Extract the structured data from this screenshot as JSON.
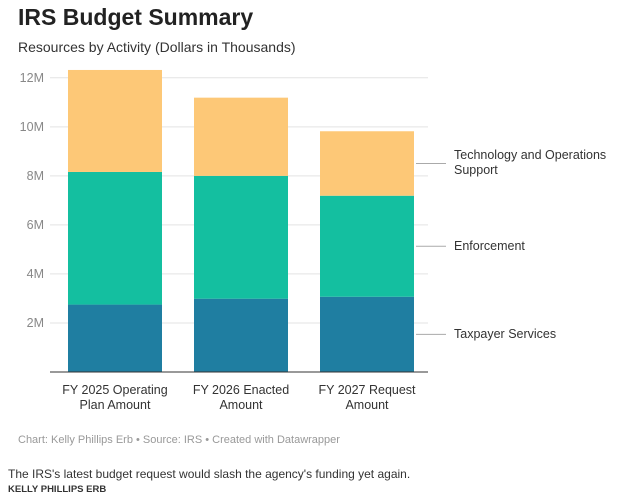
{
  "chart_data": {
    "type": "stacked_bar",
    "title": "IRS Budget Summary",
    "subtitle": "Resources by Activity (Dollars in Thousands)",
    "categories": [
      "FY 2025 Operating Plan Amount",
      "FY 2026 Enacted Amount",
      "FY 2027 Request Amount"
    ],
    "series": [
      {
        "name": "Taxpayer Services",
        "color": "#1f7ea1",
        "values": [
          2750000,
          2990000,
          3070000
        ]
      },
      {
        "name": "Enforcement",
        "color": "#14bfa0",
        "values": [
          5410000,
          5010000,
          4120000
        ]
      },
      {
        "name": "Technology and Operations Support",
        "color": "#fdc877",
        "values": [
          4160000,
          3190000,
          2630000
        ]
      }
    ],
    "ylim": [
      0,
      12400000
    ],
    "yticks": [
      {
        "value": 2000000,
        "label": "2M"
      },
      {
        "value": 4000000,
        "label": "4M"
      },
      {
        "value": 6000000,
        "label": "6M"
      },
      {
        "value": 8000000,
        "label": "8M"
      },
      {
        "value": 10000000,
        "label": "10M"
      },
      {
        "value": 12000000,
        "label": "12M"
      }
    ],
    "grid": true,
    "source": "Chart: Kelly Phillips Erb • Source: IRS • Created with Datawrapper",
    "caption": "The IRS's latest budget request would slash the agency's funding yet again.",
    "byline": "KELLY PHILLIPS ERB"
  }
}
